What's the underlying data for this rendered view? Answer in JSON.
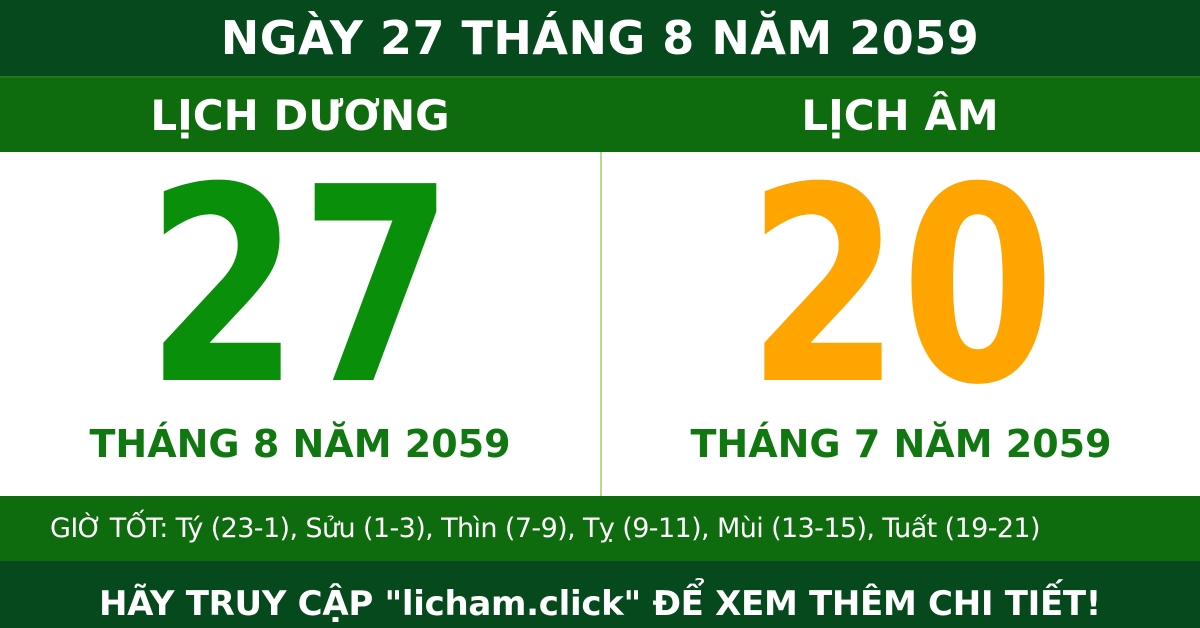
{
  "banner": {
    "title": "NGÀY 27 THÁNG 8 NĂM 2059"
  },
  "calendar": {
    "solar": {
      "label": "LỊCH DƯƠNG",
      "day": "27",
      "month_year": "THÁNG 8 NĂM 2059"
    },
    "lunar": {
      "label": "LỊCH ÂM",
      "day": "20",
      "month_year": "THÁNG 7 NĂM 2059"
    }
  },
  "good_hours": {
    "text": "GIỜ TỐT: Tý (23-1), Sửu (1-3), Thìn (7-9), Tỵ (9-11), Mùi (13-15), Tuất (19-21)"
  },
  "footer": {
    "text": "HÃY TRUY CẬP \"licham.click\" ĐỂ XEM THÊM CHI TIẾT!"
  },
  "colors": {
    "dark_green_banner": "#05491d",
    "medium_green_bar": "#0e6b0e",
    "solar_day_green": "#0a8f0a",
    "lunar_day_orange": "#ffa502",
    "month_label_green": "#117811",
    "panel_divider_light_green": "#b5dc8c",
    "text_white": "#ffffff"
  }
}
